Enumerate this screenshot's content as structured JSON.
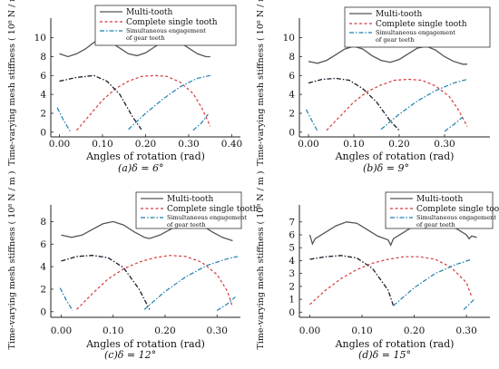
{
  "chart_data": [
    {
      "type": "line",
      "caption": "(a)δ = 6°",
      "xlabel": "Angles of rotation (rad)",
      "ylabel": "Time-varying mesh stiffness ( 10⁸ N / m )",
      "xlim": [
        -0.02,
        0.42
      ],
      "ylim": [
        -0.5,
        11.5
      ],
      "xticks": [
        0.0,
        0.1,
        0.2,
        0.3,
        0.4
      ],
      "xtick_labels": [
        "0.00",
        "0.10",
        "0.20",
        "0.30",
        "0.40"
      ],
      "yticks": [
        0,
        2,
        4,
        6,
        8,
        10
      ],
      "ytick_labels": [
        "0",
        "2",
        "4",
        "6",
        "8",
        "10"
      ],
      "legend": [
        "Multi-tooth",
        "Complete single tooth",
        "Simultaneous engagement",
        "of gear teeth"
      ],
      "series": [
        {
          "name": "Multi-tooth",
          "style": "solid",
          "x": [
            0.0,
            0.02,
            0.04,
            0.06,
            0.08,
            0.1,
            0.12,
            0.14,
            0.16,
            0.18,
            0.2,
            0.22,
            0.24,
            0.26,
            0.28,
            0.3,
            0.32,
            0.34,
            0.35
          ],
          "y": [
            8.3,
            8.0,
            8.3,
            8.8,
            9.5,
            10.0,
            9.5,
            8.9,
            8.3,
            8.1,
            8.4,
            9.0,
            9.6,
            9.9,
            9.5,
            8.9,
            8.3,
            8.0,
            8.0
          ]
        },
        {
          "name": "Complete single tooth",
          "style": "dash",
          "x": [
            0.04,
            0.07,
            0.1,
            0.13,
            0.16,
            0.19,
            0.22,
            0.25,
            0.28,
            0.31,
            0.33,
            0.35
          ],
          "y": [
            0.2,
            1.8,
            3.4,
            4.6,
            5.4,
            5.9,
            6.0,
            5.9,
            5.3,
            4.1,
            2.6,
            0.6
          ]
        },
        {
          "name": "Simultaneous engagement of gear teeth",
          "style": "dashdot",
          "x": [
            0.0,
            0.04,
            0.08,
            0.11,
            0.14,
            0.17,
            0.19,
            null,
            0.16,
            0.2,
            0.24,
            0.28,
            0.32,
            0.35,
            null,
            -0.005,
            0.01,
            0.025,
            null,
            0.31,
            0.33,
            0.345
          ],
          "y": [
            5.4,
            5.8,
            6.0,
            5.4,
            4.0,
            1.6,
            0.3,
            null,
            0.3,
            2.0,
            3.5,
            4.8,
            5.7,
            6.0,
            null,
            2.6,
            1.2,
            0.1,
            null,
            0.2,
            1.0,
            1.9
          ]
        }
      ]
    },
    {
      "type": "line",
      "caption": "(b)δ = 9°",
      "xlabel": "Angles of rotation (rad)",
      "ylabel": "Time-varying mesh stiffness ( 10⁸ N / m )",
      "xlim": [
        -0.02,
        0.4
      ],
      "ylim": [
        -0.5,
        11.5
      ],
      "xticks": [
        0.0,
        0.1,
        0.2,
        0.3
      ],
      "xtick_labels": [
        "0.00",
        "0.10",
        "0.20",
        "0.30"
      ],
      "yticks": [
        0,
        2,
        4,
        6,
        8,
        10
      ],
      "ytick_labels": [
        "0",
        "2",
        "4",
        "6",
        "8",
        "10"
      ],
      "legend": [
        "Multi-tooth",
        "Complete single tooth",
        "Simultaneous engagement",
        "of gear teeth"
      ],
      "series": [
        {
          "name": "Multi-tooth",
          "style": "solid",
          "x": [
            0.0,
            0.02,
            0.04,
            0.06,
            0.08,
            0.1,
            0.12,
            0.14,
            0.16,
            0.18,
            0.2,
            0.22,
            0.24,
            0.26,
            0.28,
            0.3,
            0.32,
            0.34,
            0.35
          ],
          "y": [
            7.5,
            7.3,
            7.6,
            8.2,
            8.8,
            9.1,
            8.8,
            8.1,
            7.6,
            7.4,
            7.7,
            8.3,
            8.9,
            9.1,
            8.7,
            8.0,
            7.5,
            7.2,
            7.2
          ]
        },
        {
          "name": "Complete single tooth",
          "style": "dash",
          "x": [
            0.04,
            0.07,
            0.1,
            0.13,
            0.16,
            0.19,
            0.22,
            0.25,
            0.28,
            0.31,
            0.33,
            0.35
          ],
          "y": [
            0.2,
            1.7,
            3.2,
            4.3,
            5.0,
            5.5,
            5.6,
            5.5,
            4.9,
            3.8,
            2.4,
            0.6
          ]
        },
        {
          "name": "Simultaneous engagement of gear teeth",
          "style": "dashdot",
          "x": [
            0.0,
            0.03,
            0.06,
            0.09,
            0.12,
            0.15,
            0.18,
            0.2,
            null,
            0.16,
            0.2,
            0.24,
            0.28,
            0.32,
            0.35,
            null,
            -0.005,
            0.01,
            0.02,
            null,
            0.3,
            0.32,
            0.34
          ],
          "y": [
            5.2,
            5.6,
            5.7,
            5.5,
            4.6,
            3.2,
            1.2,
            0.2,
            null,
            0.3,
            1.9,
            3.3,
            4.4,
            5.2,
            5.6,
            null,
            2.4,
            1.0,
            0.1,
            null,
            0.1,
            0.8,
            1.6
          ]
        }
      ]
    },
    {
      "type": "line",
      "caption": "(c)δ = 12°",
      "xlabel": "Angles of rotation (rad)",
      "ylabel": "Time-varying mesh stiffness ( 10⁸ N / m )",
      "xlim": [
        -0.02,
        0.345
      ],
      "ylim": [
        -0.5,
        9.0
      ],
      "xticks": [
        0.0,
        0.1,
        0.2,
        0.3
      ],
      "xtick_labels": [
        "0.00",
        "0.10",
        "0.20",
        "0.30"
      ],
      "yticks": [
        0,
        2,
        4,
        6,
        8
      ],
      "ytick_labels": [
        "0",
        "2",
        "4",
        "6",
        "8"
      ],
      "legend": [
        "Multi-tooth",
        "Complete single tooth",
        "Simultaneous engagement",
        "of gear teeth"
      ],
      "series": [
        {
          "name": "Multi-tooth",
          "style": "solid",
          "x": [
            0.0,
            0.02,
            0.04,
            0.06,
            0.08,
            0.1,
            0.12,
            0.14,
            0.16,
            0.17,
            0.19,
            0.21,
            0.23,
            0.25,
            0.27,
            0.29,
            0.31,
            0.33
          ],
          "y": [
            6.8,
            6.6,
            6.8,
            7.3,
            7.8,
            8.0,
            7.7,
            7.1,
            6.6,
            6.5,
            6.8,
            7.3,
            7.8,
            8.0,
            7.7,
            7.1,
            6.6,
            6.3
          ]
        },
        {
          "name": "Complete single tooth",
          "style": "dash",
          "x": [
            0.03,
            0.06,
            0.09,
            0.12,
            0.15,
            0.18,
            0.21,
            0.24,
            0.27,
            0.3,
            0.32,
            0.33
          ],
          "y": [
            0.2,
            1.6,
            2.9,
            3.8,
            4.4,
            4.8,
            5.0,
            4.9,
            4.4,
            3.3,
            1.8,
            0.4
          ]
        },
        {
          "name": "Simultaneous engagement of gear teeth",
          "style": "dashdot",
          "x": [
            0.0,
            0.03,
            0.06,
            0.09,
            0.12,
            0.15,
            0.17,
            null,
            0.16,
            0.2,
            0.24,
            0.28,
            0.32,
            0.34,
            null,
            -0.002,
            0.01,
            0.022,
            null,
            0.3,
            0.32,
            0.335
          ],
          "y": [
            4.5,
            4.9,
            5.0,
            4.8,
            3.9,
            2.0,
            0.2,
            null,
            0.2,
            1.8,
            3.1,
            4.1,
            4.7,
            4.9,
            null,
            2.1,
            1.0,
            0.1,
            null,
            0.1,
            0.7,
            1.3
          ]
        }
      ]
    },
    {
      "type": "line",
      "caption": "(d)δ = 15°",
      "xlabel": "Angles of rotation (rad)",
      "ylabel": "Time-varying mesh stiffness ( 10⁸ N / m )",
      "xlim": [
        -0.02,
        0.345
      ],
      "ylim": [
        -0.4,
        7.9
      ],
      "xticks": [
        0.0,
        0.1,
        0.2,
        0.3
      ],
      "xtick_labels": [
        "0.00",
        "0.10",
        "0.20",
        "0.30"
      ],
      "yticks": [
        0,
        1,
        2,
        3,
        4,
        5,
        6,
        7
      ],
      "ytick_labels": [
        "0",
        "1",
        "2",
        "3",
        "4",
        "5",
        "6",
        "7"
      ],
      "legend": [
        "Multi-tooth",
        "Complete single tooth",
        "Simultaneous engagement",
        "of gear teeth"
      ],
      "series": [
        {
          "name": "Multi-tooth",
          "style": "solid",
          "x": [
            0.0,
            0.005,
            0.01,
            0.03,
            0.05,
            0.07,
            0.09,
            0.11,
            0.13,
            0.15,
            0.155,
            0.16,
            0.18,
            0.2,
            0.22,
            0.24,
            0.26,
            0.28,
            0.3,
            0.305,
            0.31,
            0.32
          ],
          "y": [
            6.0,
            5.3,
            5.7,
            6.2,
            6.7,
            7.0,
            6.9,
            6.4,
            5.9,
            5.6,
            5.2,
            5.7,
            6.2,
            6.7,
            7.0,
            7.0,
            6.8,
            6.5,
            6.0,
            5.7,
            5.9,
            5.8
          ]
        },
        {
          "name": "Complete single tooth",
          "style": "dash",
          "x": [
            0.0,
            0.03,
            0.06,
            0.09,
            0.12,
            0.15,
            0.18,
            0.21,
            0.24,
            0.27,
            0.3,
            0.31
          ],
          "y": [
            0.6,
            1.7,
            2.6,
            3.3,
            3.8,
            4.1,
            4.3,
            4.3,
            4.1,
            3.5,
            2.3,
            1.2
          ]
        },
        {
          "name": "Simultaneous engagement of gear teeth",
          "style": "dashdot",
          "x": [
            0.0,
            0.03,
            0.06,
            0.09,
            0.12,
            0.15,
            0.16,
            null,
            0.16,
            0.2,
            0.24,
            0.28,
            0.31,
            null,
            0.295,
            0.305,
            0.315
          ],
          "y": [
            4.1,
            4.3,
            4.4,
            4.2,
            3.4,
            1.7,
            0.5,
            null,
            0.5,
            1.9,
            3.0,
            3.7,
            4.1,
            null,
            0.2,
            0.6,
            1.0
          ]
        }
      ]
    }
  ]
}
